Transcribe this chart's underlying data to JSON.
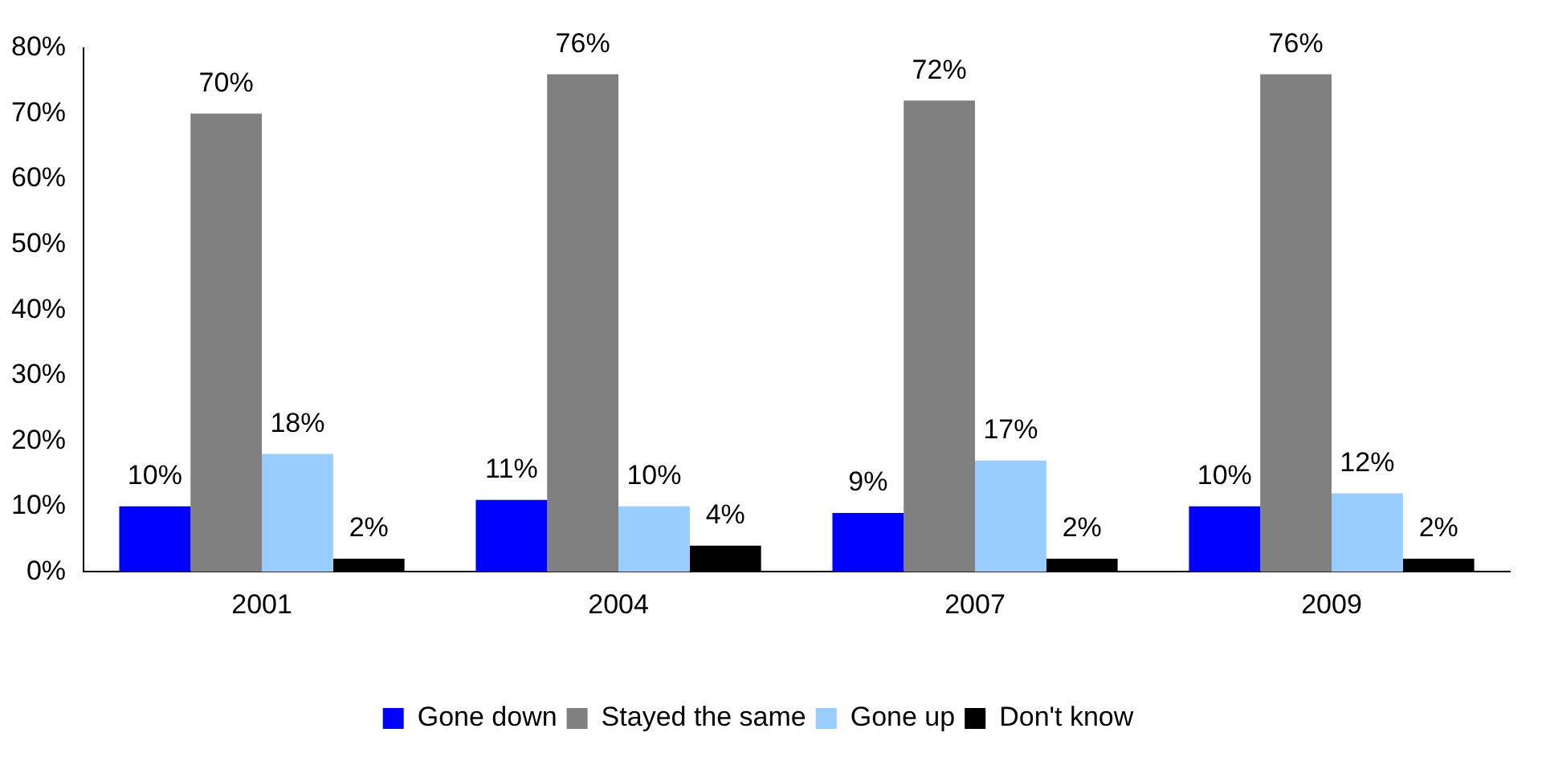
{
  "chart_data": {
    "type": "bar",
    "categories": [
      "2001",
      "2004",
      "2007",
      "2009"
    ],
    "series": [
      {
        "name": "Gone down",
        "color": "#0000ff",
        "values": [
          10,
          11,
          9,
          10
        ],
        "value_labels": [
          "10%",
          "11%",
          "9%",
          "10%"
        ]
      },
      {
        "name": "Stayed the same",
        "color": "#808080",
        "values": [
          70,
          76,
          72,
          76
        ],
        "value_labels": [
          "70%",
          "76%",
          "72%",
          "76%"
        ]
      },
      {
        "name": "Gone up",
        "color": "#99ccff",
        "values": [
          18,
          10,
          17,
          12
        ],
        "value_labels": [
          "18%",
          "10%",
          "17%",
          "12%"
        ]
      },
      {
        "name": "Don't know",
        "color": "#000000",
        "values": [
          2,
          4,
          2,
          2
        ],
        "value_labels": [
          "2%",
          "4%",
          "2%",
          "2%"
        ]
      }
    ],
    "ylim": [
      0,
      80
    ],
    "yticks": [
      {
        "value": 0,
        "label": "0%"
      },
      {
        "value": 10,
        "label": "10%"
      },
      {
        "value": 20,
        "label": "20%"
      },
      {
        "value": 30,
        "label": "30%"
      },
      {
        "value": 40,
        "label": "40%"
      },
      {
        "value": 50,
        "label": "50%"
      },
      {
        "value": 60,
        "label": "60%"
      },
      {
        "value": 70,
        "label": "70%"
      },
      {
        "value": 80,
        "label": "80%"
      }
    ],
    "grid": false,
    "legend": "bottom"
  }
}
